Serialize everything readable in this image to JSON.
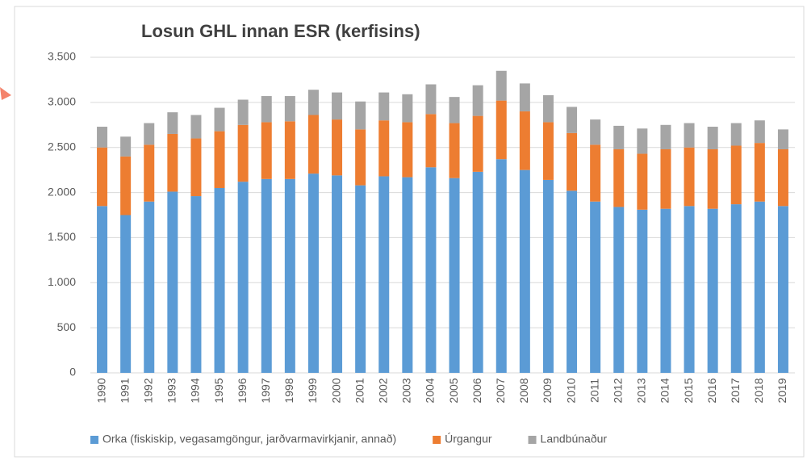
{
  "chart_data": {
    "type": "stacked_bar",
    "title": "Losun GHL innan ESR (kerfisins)",
    "categories": [
      "1990",
      "1991",
      "1992",
      "1993",
      "1994",
      "1995",
      "1996",
      "1997",
      "1998",
      "1999",
      "2000",
      "2001",
      "2002",
      "2003",
      "2004",
      "2005",
      "2006",
      "2007",
      "2008",
      "2009",
      "2010",
      "2011",
      "2012",
      "2013",
      "2014",
      "2015",
      "2016",
      "2017",
      "2018",
      "2019"
    ],
    "series": [
      {
        "name": "Orka (fiskiskip, vegasamgöngur, jarðvarmavirkjanir, annað)",
        "color": "#5b9bd5",
        "values": [
          1850,
          1750,
          1900,
          2010,
          1960,
          2050,
          2120,
          2150,
          2150,
          2210,
          2190,
          2080,
          2180,
          2170,
          2280,
          2160,
          2230,
          2370,
          2250,
          2140,
          2020,
          1900,
          1840,
          1810,
          1820,
          1850,
          1820,
          1870,
          1900,
          1850
        ]
      },
      {
        "name": "Úrgangur",
        "color": "#ed7d31",
        "values": [
          650,
          650,
          630,
          640,
          640,
          630,
          630,
          630,
          640,
          650,
          620,
          620,
          620,
          610,
          590,
          610,
          620,
          650,
          650,
          640,
          640,
          630,
          640,
          620,
          660,
          650,
          660,
          650,
          650,
          630
        ]
      },
      {
        "name": "Landbúnaður",
        "color": "#a5a5a5",
        "values": [
          230,
          220,
          240,
          240,
          260,
          260,
          280,
          290,
          280,
          280,
          300,
          310,
          310,
          310,
          330,
          290,
          340,
          330,
          310,
          300,
          290,
          280,
          260,
          280,
          270,
          270,
          250,
          250,
          250,
          220
        ]
      }
    ],
    "ylim": [
      0,
      3500
    ],
    "yticks": [
      0,
      500,
      {
        "value": 1000,
        "label": "1.000"
      },
      {
        "value": 1500,
        "label": "1.500"
      },
      {
        "value": 2000,
        "label": "2.000"
      },
      {
        "value": 2500,
        "label": "2.500"
      },
      {
        "value": 3000,
        "label": "3.000"
      },
      {
        "value": 3500,
        "label": "3.500"
      }
    ],
    "grid": true,
    "legend": "bottom"
  }
}
